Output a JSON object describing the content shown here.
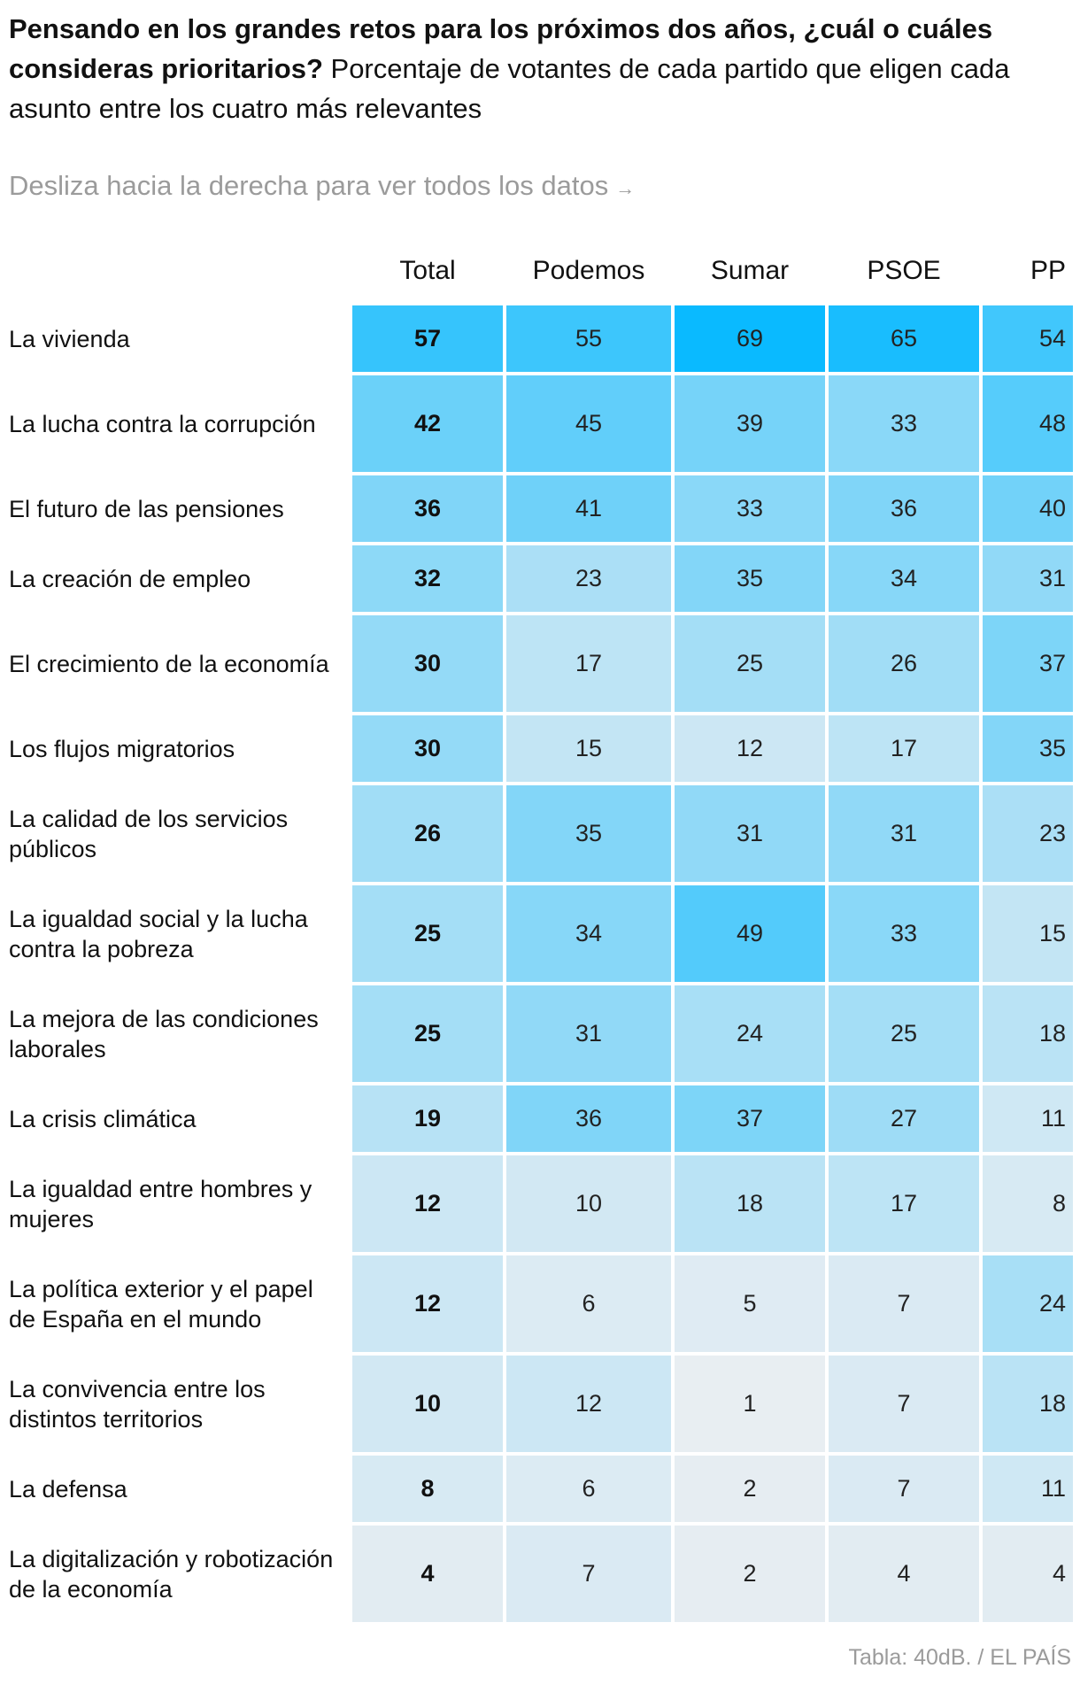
{
  "header": {
    "title": "Pensando en los grandes retos para los próximos dos años, ¿cuál o cuáles consideras prioritarios?",
    "subtitle": "Porcentaje de votantes de cada partido que eligen cada asunto entre los cuatro más relevantes"
  },
  "hint": {
    "text": "Desliza hacia la derecha para ver todos los datos",
    "arrow": "→"
  },
  "source": "Tabla: 40dB. / EL PAÍS",
  "colors": {
    "scale_low": "#eaeef2",
    "scale_high": "#0abaff",
    "text_muted": "#9b9b9b"
  },
  "chart_data": {
    "type": "table",
    "columns": [
      "Total",
      "Podemos",
      "Sumar",
      "PSOE",
      "PP"
    ],
    "rows": [
      {
        "label": "La vivienda",
        "values": [
          57,
          55,
          69,
          65,
          54
        ]
      },
      {
        "label": "La lucha contra la corrupción",
        "values": [
          42,
          45,
          39,
          33,
          48
        ]
      },
      {
        "label": "El futuro de las pensiones",
        "values": [
          36,
          41,
          33,
          36,
          40
        ]
      },
      {
        "label": "La creación de empleo",
        "values": [
          32,
          23,
          35,
          34,
          31
        ]
      },
      {
        "label": "El crecimiento de la economía",
        "values": [
          30,
          17,
          25,
          26,
          37
        ]
      },
      {
        "label": "Los flujos migratorios",
        "values": [
          30,
          15,
          12,
          17,
          35
        ]
      },
      {
        "label": "La calidad de los servicios públicos",
        "values": [
          26,
          35,
          31,
          31,
          23
        ]
      },
      {
        "label": "La igualdad social y la lucha contra la pobreza",
        "values": [
          25,
          34,
          49,
          33,
          15
        ]
      },
      {
        "label": "La mejora de las condiciones laborales",
        "values": [
          25,
          31,
          24,
          25,
          18
        ]
      },
      {
        "label": "La crisis climática",
        "values": [
          19,
          36,
          37,
          27,
          11
        ]
      },
      {
        "label": "La igualdad entre hombres y mujeres",
        "values": [
          12,
          10,
          18,
          17,
          8
        ]
      },
      {
        "label": "La política exterior y el papel de España en el mundo",
        "values": [
          12,
          6,
          5,
          7,
          24
        ]
      },
      {
        "label": "La convivencia entre los distintos territorios",
        "values": [
          10,
          12,
          1,
          7,
          18
        ]
      },
      {
        "label": "La defensa",
        "values": [
          8,
          6,
          2,
          7,
          11
        ]
      },
      {
        "label": "La digitalización y robotización de la economía",
        "values": [
          4,
          7,
          2,
          4,
          4
        ]
      }
    ]
  }
}
